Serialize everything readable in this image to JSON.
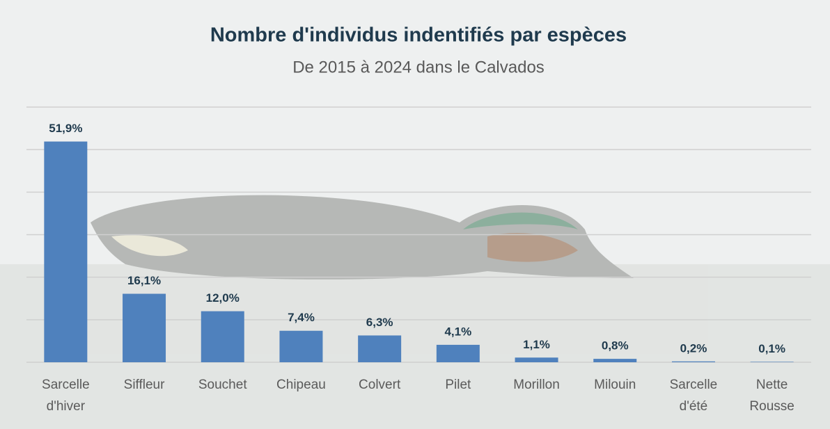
{
  "chart_data": {
    "type": "bar",
    "title": "Nombre d'individus indentifiés par espèces",
    "subtitle": "De 2015 à 2024 dans le Calvados",
    "categories": [
      "Sarcelle d'hiver",
      "Siffleur",
      "Souchet",
      "Chipeau",
      "Colvert",
      "Pilet",
      "Morillon",
      "Milouin",
      "Sarcelle d'été",
      "Nette Rousse"
    ],
    "values": [
      51.9,
      16.1,
      12.0,
      7.4,
      6.3,
      4.1,
      1.1,
      0.8,
      0.2,
      0.1
    ],
    "value_labels": [
      "51,9%",
      "16,1%",
      "12,0%",
      "7,4%",
      "6,3%",
      "4,1%",
      "1,1%",
      "0,8%",
      "0,2%",
      "0,1%"
    ],
    "color": "#4f81bd",
    "ylim": [
      0,
      60
    ],
    "yticks": [
      0,
      10,
      20,
      30,
      40,
      50,
      60
    ],
    "grid": true
  }
}
